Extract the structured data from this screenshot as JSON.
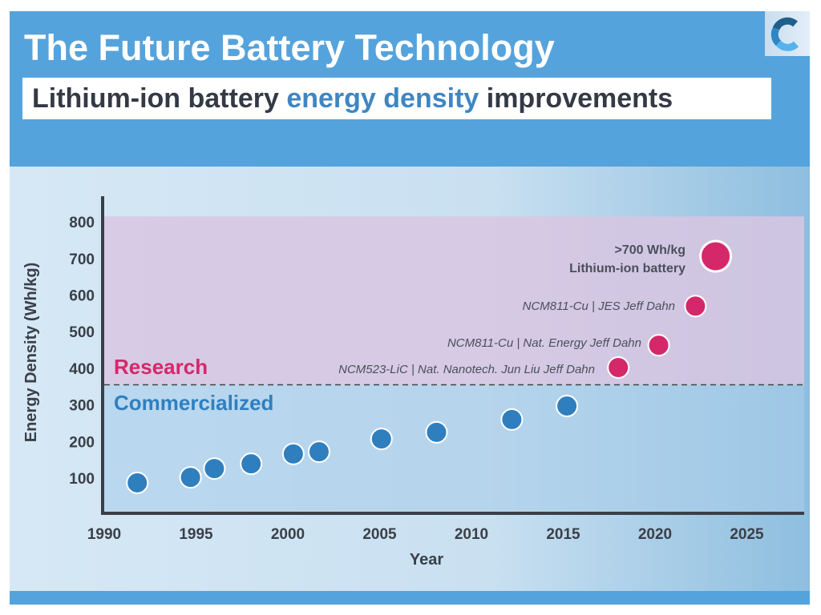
{
  "header": {
    "title": "The Future Battery Technology",
    "subtitle_parts": [
      "Lithium-ion battery ",
      "energy density",
      " improvements"
    ]
  },
  "logo": {
    "icon": "c-logo",
    "colors": [
      "#1e5f8c",
      "#2f86c4",
      "#55b2ec"
    ]
  },
  "colors": {
    "research": "#d4286a",
    "commercial": "#2f7fbf",
    "research_band": "#d8c6e2"
  },
  "chart_data": {
    "type": "scatter",
    "xlabel": "Year",
    "ylabel": "Energy Density (Wh/kg)",
    "xlim": [
      1990,
      2028
    ],
    "ylim": [
      0,
      820
    ],
    "xticks": [
      1990,
      1995,
      2000,
      2005,
      2010,
      2015,
      2020,
      2025
    ],
    "yticks": [
      100,
      200,
      300,
      400,
      500,
      600,
      700,
      800
    ],
    "grid": false,
    "threshold": 355,
    "regions": [
      {
        "label": "Research"
      },
      {
        "label": "Commercialized"
      }
    ],
    "series": [
      {
        "name": "Commercialized",
        "points": [
          [
            1991.8,
            87
          ],
          [
            1994.7,
            102
          ],
          [
            1996,
            126
          ],
          [
            1998,
            139
          ],
          [
            2000.3,
            166
          ],
          [
            2001.7,
            172
          ],
          [
            2005.1,
            207
          ],
          [
            2008.1,
            225
          ],
          [
            2012.2,
            260
          ],
          [
            2015.2,
            297
          ]
        ]
      },
      {
        "name": "Research",
        "points": [
          [
            2018,
            402
          ],
          [
            2020.2,
            463
          ],
          [
            2022.2,
            570
          ],
          [
            2023.3,
            706
          ]
        ]
      }
    ],
    "annotations": [
      "NCM523-LiC | Nat. Nanotech. Jun Liu Jeff Dahn",
      "NCM811-Cu | Nat. Energy Jeff Dahn",
      "NCM811-Cu | JES Jeff Dahn",
      ">700 Wh/kg",
      "Lithium-ion battery"
    ]
  }
}
